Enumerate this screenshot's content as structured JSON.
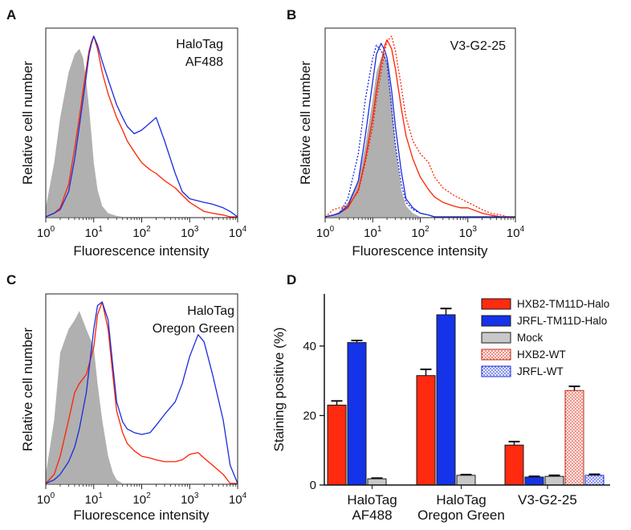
{
  "panels": {
    "A": {
      "label": "A",
      "annotation_lines": [
        "HaloTag",
        "AF488"
      ],
      "ylabel": "Relative cell number",
      "xlabel": "Fluorescence intensity"
    },
    "B": {
      "label": "B",
      "annotation_lines": [
        "V3-G2-25"
      ],
      "ylabel": "Relative cell number",
      "xlabel": "Fluorescence intensity"
    },
    "C": {
      "label": "C",
      "annotation_lines": [
        "HaloTag",
        "Oregon Green"
      ],
      "ylabel": "Relative cell number",
      "xlabel": "Fluorescence intensity"
    },
    "D": {
      "label": "D"
    }
  },
  "log_ticks": {
    "base": "10",
    "exponents": [
      "0",
      "1",
      "2",
      "3",
      "4"
    ]
  },
  "colors": {
    "hxb2": "#ff2200",
    "jrfl": "#1a2bdd",
    "mock_line": "#d62020",
    "histogram_fill": "#b0b0b0",
    "bar_red": "#ff2a10",
    "bar_blue": "#1533e8",
    "bar_grey": "#c8c8c8"
  },
  "chart_data": [
    {
      "type": "line",
      "panel": "A",
      "title": "HaloTag AF488",
      "xscale": "log",
      "xlim": [
        1,
        10000
      ],
      "ylim": [
        0,
        1
      ],
      "xlabel": "Fluorescence intensity",
      "ylabel": "Relative cell number",
      "x": [
        1,
        1.5,
        2,
        3,
        4,
        5,
        6,
        7,
        8,
        9,
        10,
        12,
        15,
        20,
        30,
        40,
        50,
        70,
        100,
        150,
        200,
        300,
        500,
        700,
        1000,
        2000,
        3000,
        5000,
        7000,
        10000
      ],
      "series": [
        {
          "name": "Mock",
          "style": "filled",
          "values": [
            0.05,
            0.3,
            0.55,
            0.8,
            0.9,
            0.93,
            0.88,
            0.75,
            0.6,
            0.45,
            0.3,
            0.15,
            0.06,
            0.02,
            0.005,
            0,
            0,
            0,
            0,
            0,
            0,
            0,
            0,
            0,
            0,
            0,
            0,
            0,
            0,
            0
          ]
        },
        {
          "name": "HXB2-TM11D-Halo",
          "style": "line",
          "values": [
            0.0,
            0.02,
            0.05,
            0.18,
            0.38,
            0.55,
            0.7,
            0.82,
            0.92,
            0.97,
            1.0,
            0.93,
            0.8,
            0.68,
            0.55,
            0.48,
            0.42,
            0.36,
            0.3,
            0.26,
            0.24,
            0.2,
            0.16,
            0.12,
            0.08,
            0.03,
            0.02,
            0.01,
            0.0,
            0.0
          ]
        },
        {
          "name": "JRFL-TM11D-Halo",
          "style": "line",
          "values": [
            0.0,
            0.02,
            0.04,
            0.14,
            0.32,
            0.5,
            0.65,
            0.78,
            0.9,
            0.96,
            1.0,
            0.95,
            0.86,
            0.76,
            0.62,
            0.55,
            0.5,
            0.46,
            0.48,
            0.52,
            0.55,
            0.42,
            0.24,
            0.14,
            0.1,
            0.08,
            0.07,
            0.05,
            0.03,
            0.0
          ]
        }
      ]
    },
    {
      "type": "line",
      "panel": "B",
      "title": "V3-G2-25",
      "xscale": "log",
      "xlim": [
        1,
        10000
      ],
      "ylim": [
        0,
        1
      ],
      "xlabel": "Fluorescence intensity",
      "ylabel": "Relative cell number",
      "x": [
        1,
        1.5,
        2,
        3,
        5,
        7,
        10,
        12,
        15,
        18,
        20,
        25,
        30,
        40,
        50,
        70,
        100,
        150,
        200,
        300,
        500,
        700,
        1000,
        2000,
        3000,
        5000,
        7000,
        10000
      ],
      "series": [
        {
          "name": "Mock",
          "style": "filled",
          "values": [
            0.0,
            0.01,
            0.03,
            0.08,
            0.2,
            0.4,
            0.65,
            0.8,
            0.88,
            0.9,
            0.85,
            0.65,
            0.4,
            0.15,
            0.06,
            0.02,
            0,
            0,
            0,
            0,
            0,
            0,
            0,
            0,
            0,
            0,
            0,
            0
          ]
        },
        {
          "name": "HXB2-TM11D-Halo",
          "style": "solid",
          "values": [
            0.0,
            0.01,
            0.02,
            0.05,
            0.15,
            0.32,
            0.55,
            0.7,
            0.85,
            0.95,
            0.98,
            0.93,
            0.82,
            0.6,
            0.45,
            0.32,
            0.22,
            0.15,
            0.11,
            0.08,
            0.06,
            0.05,
            0.05,
            0.02,
            0.01,
            0.0,
            0.0,
            0.0
          ]
        },
        {
          "name": "JRFL-TM11D-Halo",
          "style": "solid",
          "values": [
            0.0,
            0.01,
            0.02,
            0.06,
            0.2,
            0.45,
            0.75,
            0.9,
            0.96,
            0.92,
            0.88,
            0.7,
            0.5,
            0.25,
            0.1,
            0.05,
            0.02,
            0.01,
            0.0,
            0.0,
            0.0,
            0.0,
            0.0,
            0.0,
            0.0,
            0.0,
            0.0,
            0.0
          ]
        },
        {
          "name": "HXB2-WT",
          "style": "dotted",
          "values": [
            0.0,
            0.04,
            0.05,
            0.06,
            0.14,
            0.3,
            0.5,
            0.65,
            0.8,
            0.92,
            0.97,
            1.0,
            0.92,
            0.72,
            0.55,
            0.42,
            0.35,
            0.3,
            0.22,
            0.16,
            0.12,
            0.1,
            0.08,
            0.04,
            0.02,
            0.01,
            0.0,
            0.0
          ]
        },
        {
          "name": "JRFL-WT",
          "style": "dotted",
          "values": [
            0.0,
            0.01,
            0.02,
            0.1,
            0.35,
            0.65,
            0.88,
            0.95,
            0.92,
            0.88,
            0.85,
            0.6,
            0.4,
            0.18,
            0.08,
            0.04,
            0.02,
            0.01,
            0.0,
            0.0,
            0.0,
            0.0,
            0.0,
            0.0,
            0.0,
            0.0,
            0.0,
            0.0
          ]
        }
      ]
    },
    {
      "type": "line",
      "panel": "C",
      "title": "HaloTag Oregon Green",
      "xscale": "log",
      "xlim": [
        1,
        10000
      ],
      "ylim": [
        0,
        1
      ],
      "xlabel": "Fluorescence intensity",
      "ylabel": "Relative cell number",
      "x": [
        1,
        1.5,
        2,
        3,
        4,
        5,
        7,
        10,
        12,
        15,
        20,
        25,
        30,
        40,
        50,
        70,
        100,
        150,
        200,
        300,
        500,
        700,
        1000,
        1500,
        2000,
        3000,
        5000,
        7000,
        10000
      ],
      "series": [
        {
          "name": "Mock",
          "style": "filled",
          "values": [
            0.05,
            0.35,
            0.72,
            0.85,
            0.9,
            0.95,
            0.85,
            0.75,
            0.55,
            0.35,
            0.15,
            0.06,
            0.02,
            0.0,
            0,
            0,
            0,
            0,
            0,
            0,
            0,
            0,
            0,
            0,
            0,
            0,
            0,
            0,
            0
          ]
        },
        {
          "name": "HXB2-TM11D-Halo",
          "style": "line",
          "values": [
            0.0,
            0.05,
            0.15,
            0.35,
            0.5,
            0.55,
            0.6,
            0.75,
            0.93,
            1.0,
            0.85,
            0.6,
            0.4,
            0.28,
            0.22,
            0.18,
            0.15,
            0.14,
            0.13,
            0.12,
            0.12,
            0.13,
            0.16,
            0.17,
            0.14,
            0.1,
            0.05,
            0.0,
            0.0
          ]
        },
        {
          "name": "JRFL-TM11D-Halo",
          "style": "line",
          "values": [
            0.0,
            0.02,
            0.05,
            0.12,
            0.2,
            0.3,
            0.5,
            0.85,
            0.98,
            1.0,
            0.9,
            0.65,
            0.45,
            0.34,
            0.3,
            0.28,
            0.27,
            0.28,
            0.32,
            0.38,
            0.45,
            0.55,
            0.7,
            0.82,
            0.78,
            0.6,
            0.35,
            0.1,
            0.0
          ]
        }
      ]
    },
    {
      "type": "bar",
      "panel": "D",
      "categories": [
        "HaloTag AF488",
        "HaloTag Oregon Green",
        "V3-G2-25"
      ],
      "category_label_lines": [
        [
          "HaloTag",
          "AF488"
        ],
        [
          "HaloTag",
          "Oregon Green"
        ],
        [
          "V3-G2-25"
        ]
      ],
      "ylabel": "Staining positive (%)",
      "ylim": [
        0,
        55
      ],
      "yticks": [
        0,
        20,
        40
      ],
      "series": [
        {
          "name": "HXB2-TM11D-Halo",
          "values": [
            23,
            31.5,
            11.5
          ],
          "errors": [
            1.2,
            1.8,
            1.0
          ]
        },
        {
          "name": "JRFL-TM11D-Halo",
          "values": [
            41,
            49,
            2.3
          ],
          "errors": [
            0.6,
            1.8,
            0.2
          ]
        },
        {
          "name": "Mock",
          "values": [
            1.8,
            2.8,
            2.5
          ],
          "errors": [
            0.2,
            0.2,
            0.3
          ]
        },
        {
          "name": "HXB2-WT",
          "values": [
            null,
            null,
            27.2
          ],
          "errors": [
            null,
            null,
            1.2
          ]
        },
        {
          "name": "JRFL-WT",
          "values": [
            null,
            null,
            2.8
          ],
          "errors": [
            null,
            null,
            0.3
          ]
        }
      ],
      "legend_position": "top-right"
    }
  ]
}
